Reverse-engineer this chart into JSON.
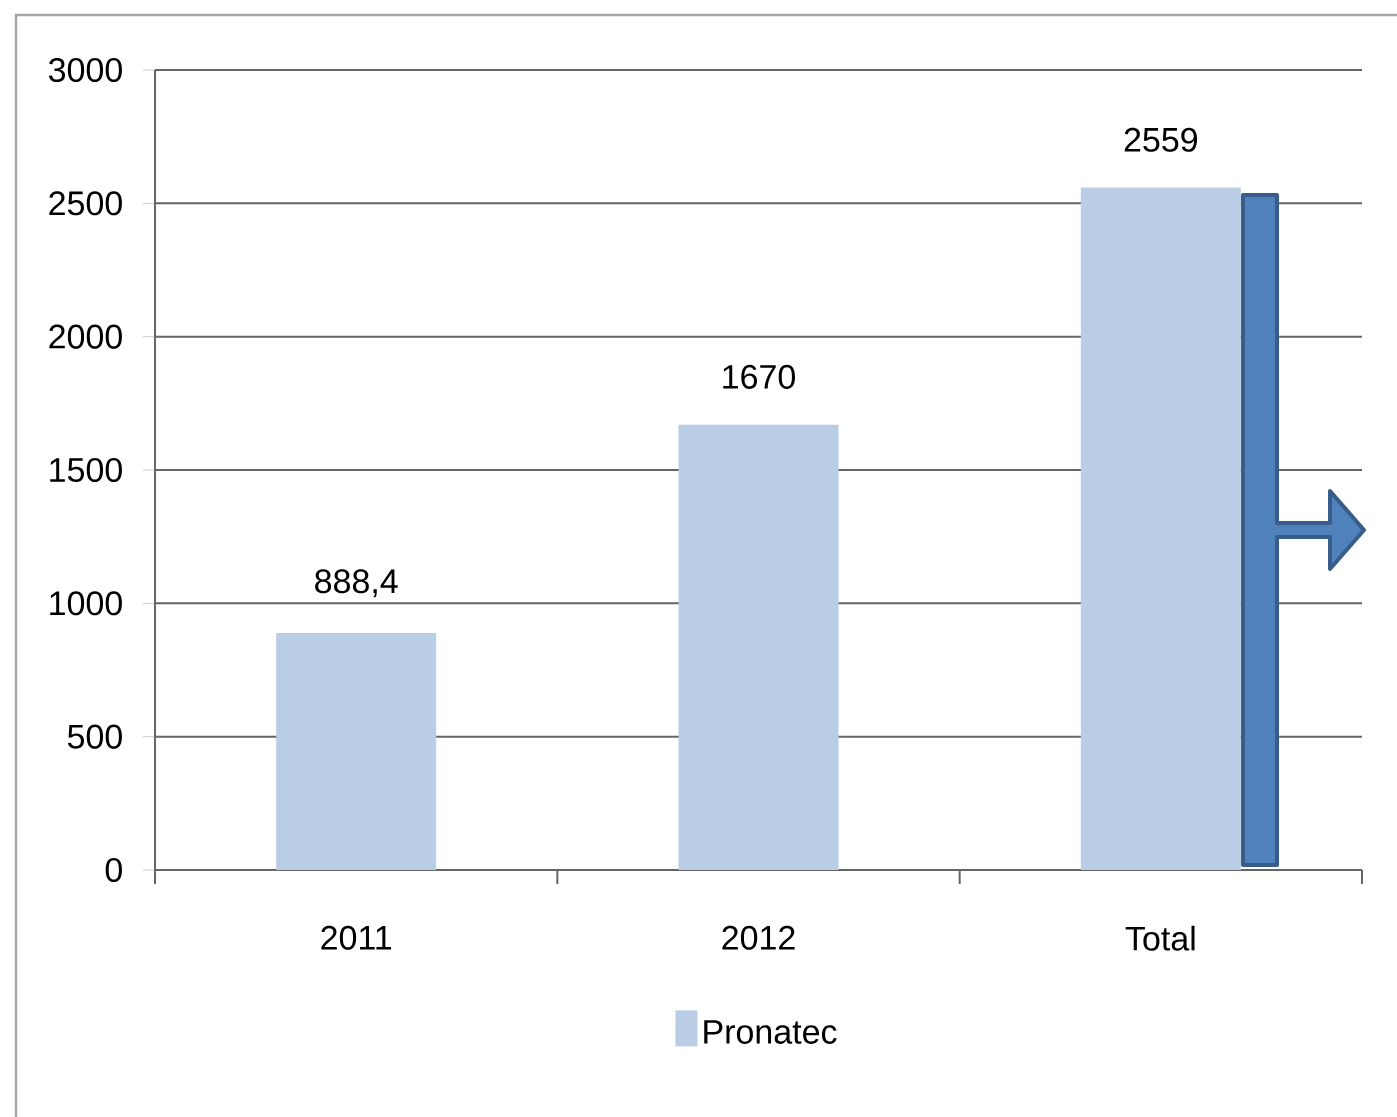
{
  "chart_data": {
    "type": "bar",
    "categories": [
      "2011",
      "2012",
      "Total"
    ],
    "series": [
      {
        "name": "Pronatec",
        "color": "#b9cde5",
        "values": [
          888.4,
          1670,
          2559
        ],
        "value_labels": [
          "888,4",
          "1670",
          "2559"
        ]
      }
    ],
    "ylim": [
      0,
      3000
    ],
    "yticks": [
      0,
      500,
      1000,
      1500,
      2000,
      2500,
      3000
    ],
    "grid": "y",
    "legend": "bottom"
  }
}
